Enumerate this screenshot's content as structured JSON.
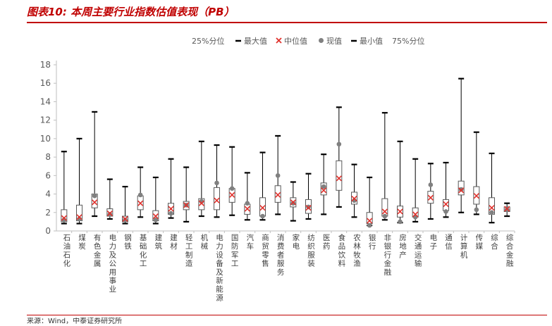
{
  "title": "图表10: 本周主要行业指数估值表现（PB）",
  "source": "来源：Wind，中泰证券研究所",
  "colors": {
    "accent": "#c00000",
    "box_stroke": "#595959",
    "whisker": "#000000",
    "median_marker": "#e0322d",
    "current_marker": "#808080",
    "text": "#595959"
  },
  "legend": [
    {
      "label": "25%分位",
      "symbol": "none"
    },
    {
      "label": "最大值",
      "symbol": "dash"
    },
    {
      "label": "中位值",
      "symbol": "cross"
    },
    {
      "label": "现值",
      "symbol": "dot"
    },
    {
      "label": "最小值",
      "symbol": "dash"
    },
    {
      "label": "75%分位",
      "symbol": "none"
    }
  ],
  "chart_data": {
    "type": "box",
    "title": "图表10: 本周主要行业指数估值表现（PB）",
    "xlabel": "",
    "ylabel": "",
    "ylim": [
      0,
      18
    ],
    "yticks": [
      0,
      2,
      4,
      6,
      8,
      10,
      12,
      14,
      16,
      18
    ],
    "grid": false,
    "legend_position": "top",
    "categories": [
      "石油石化",
      "煤炭",
      "有色金属",
      "电力及公用事业",
      "钢铁",
      "基础化工",
      "建筑",
      "建材",
      "轻工制造",
      "机械",
      "电力设备及新能源",
      "国防军工",
      "汽车",
      "商贸零售",
      "消费者服务",
      "家电",
      "纺织服装",
      "医药",
      "食品饮料",
      "农林牧渔",
      "银行",
      "非银行金融",
      "房地产",
      "交通运输",
      "电子",
      "通信",
      "计算机",
      "传媒",
      "综合",
      "综合金融"
    ],
    "series": [
      {
        "name": "最大值",
        "values": [
          8.6,
          10.0,
          12.9,
          5.6,
          4.8,
          6.9,
          5.8,
          7.8,
          6.9,
          9.7,
          9.3,
          9.1,
          6.3,
          8.5,
          10.3,
          5.3,
          6.2,
          8.3,
          13.4,
          7.2,
          5.8,
          12.8,
          9.7,
          7.8,
          7.3,
          7.4,
          16.5,
          10.7,
          8.4,
          3.0
        ]
      },
      {
        "name": "75%分位",
        "values": [
          2.3,
          2.8,
          4.0,
          2.4,
          1.6,
          3.8,
          2.2,
          3.0,
          3.2,
          3.5,
          4.7,
          4.6,
          2.9,
          3.6,
          4.9,
          3.6,
          3.4,
          5.2,
          7.6,
          4.2,
          2.0,
          3.5,
          2.7,
          2.5,
          4.3,
          3.4,
          5.4,
          4.8,
          3.6,
          2.6
        ]
      },
      {
        "name": "中位值",
        "values": [
          1.4,
          1.5,
          3.1,
          1.9,
          1.3,
          3.0,
          1.6,
          2.4,
          2.8,
          3.0,
          3.3,
          3.9,
          2.4,
          2.5,
          3.9,
          3.1,
          2.5,
          4.4,
          5.7,
          3.5,
          1.1,
          2.1,
          2.1,
          1.8,
          3.6,
          2.9,
          4.4,
          3.8,
          2.5,
          2.4
        ]
      },
      {
        "name": "现值",
        "values": [
          1.2,
          1.3,
          3.8,
          1.8,
          1.2,
          3.9,
          1.2,
          1.9,
          2.8,
          3.2,
          5.2,
          4.6,
          3.0,
          1.6,
          6.0,
          3.0,
          2.6,
          4.8,
          9.4,
          3.3,
          0.6,
          1.6,
          1.0,
          1.5,
          5.0,
          2.1,
          4.5,
          2.3,
          2.0,
          2.3
        ]
      },
      {
        "name": "25%分位",
        "values": [
          1.0,
          1.1,
          2.5,
          1.6,
          1.0,
          2.3,
          1.1,
          1.8,
          2.3,
          2.3,
          2.3,
          3.1,
          1.8,
          1.6,
          3.1,
          2.6,
          1.9,
          3.9,
          4.4,
          2.9,
          0.8,
          1.6,
          1.5,
          1.5,
          3.0,
          2.2,
          3.9,
          2.9,
          1.8,
          2.1
        ]
      },
      {
        "name": "最小值",
        "values": [
          0.8,
          0.8,
          1.6,
          1.3,
          0.8,
          1.5,
          0.8,
          1.4,
          1.0,
          1.6,
          1.5,
          1.7,
          1.2,
          1.2,
          1.8,
          1.1,
          1.3,
          1.8,
          2.6,
          1.5,
          0.6,
          1.2,
          0.9,
          1.0,
          1.3,
          1.5,
          2.0,
          1.8,
          0.9,
          1.6
        ]
      }
    ]
  }
}
